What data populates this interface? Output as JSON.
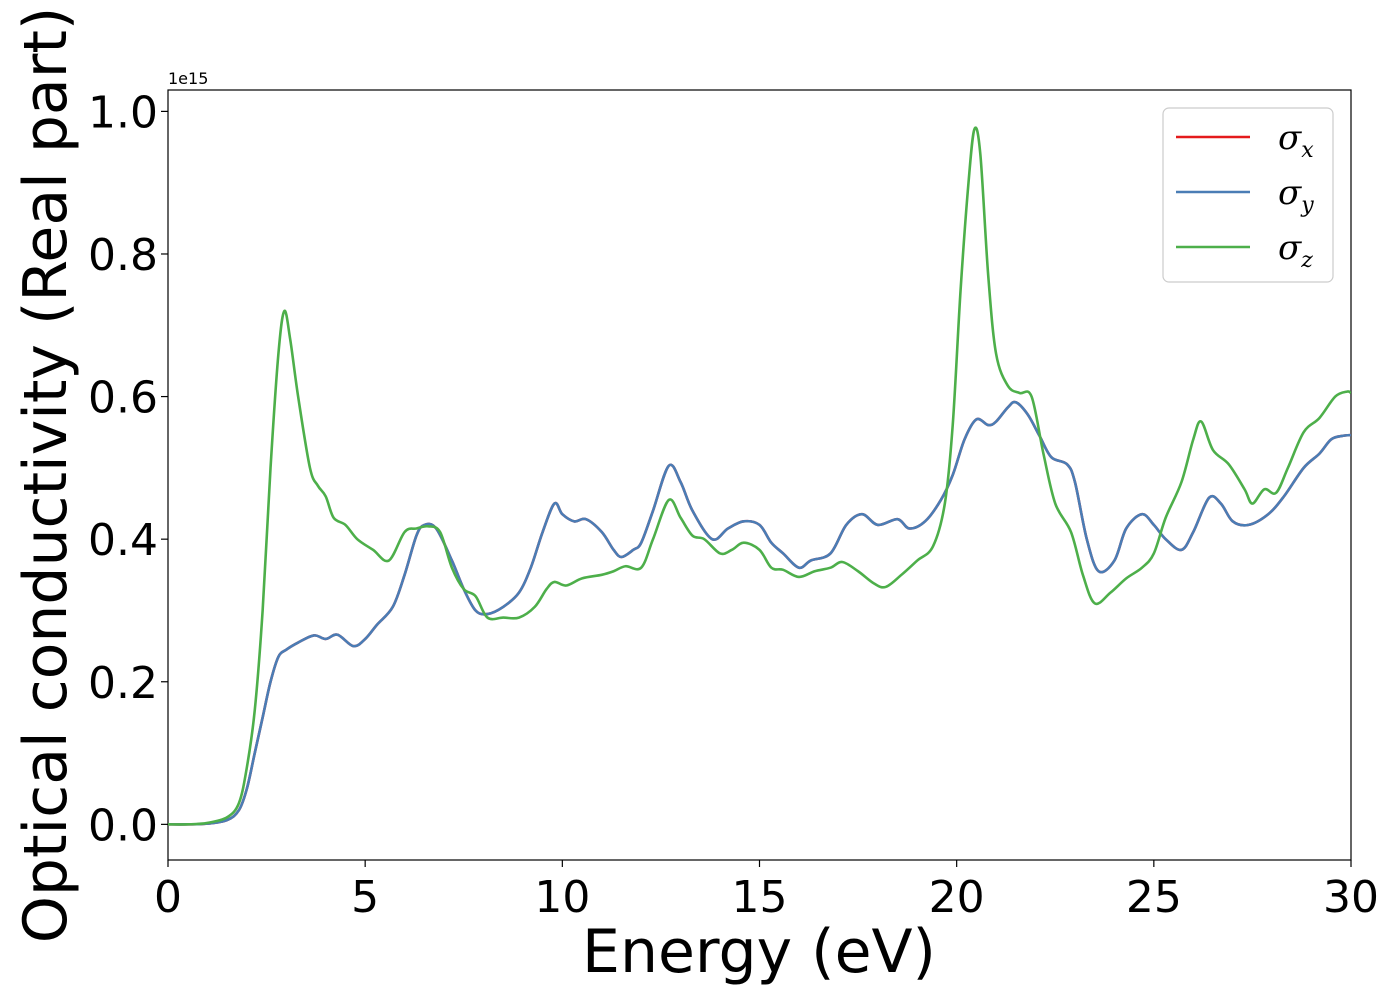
{
  "chart_data": {
    "type": "line",
    "xlabel": "Energy (eV)",
    "ylabel": "Optical conductivity (Real part)",
    "y_offset_label": "1e15",
    "xlim": [
      0,
      30
    ],
    "ylim": [
      -0.05,
      1.03
    ],
    "xticks": [
      0,
      5,
      10,
      15,
      20,
      25,
      30
    ],
    "xtick_labels": [
      "0",
      "5",
      "10",
      "15",
      "20",
      "25",
      "30"
    ],
    "yticks": [
      0.0,
      0.2,
      0.4,
      0.6,
      0.8,
      1.0
    ],
    "ytick_labels": [
      "0.0",
      "0.2",
      "0.4",
      "0.6",
      "0.8",
      "1.0"
    ],
    "grid": false,
    "legend_position": "top-right",
    "series": [
      {
        "name": "σ_x",
        "legend_base": "σ",
        "legend_sub": "x",
        "color": "#e41a1c",
        "points": [
          [
            0,
            0
          ],
          [
            0.5,
            0
          ],
          [
            1,
            0.001
          ],
          [
            1.5,
            0.006
          ],
          [
            1.8,
            0.02
          ],
          [
            2.0,
            0.05
          ],
          [
            2.2,
            0.1
          ],
          [
            2.4,
            0.15
          ],
          [
            2.6,
            0.2
          ],
          [
            2.8,
            0.235
          ],
          [
            3.0,
            0.245
          ],
          [
            3.3,
            0.255
          ],
          [
            3.7,
            0.265
          ],
          [
            4.0,
            0.26
          ],
          [
            4.3,
            0.266
          ],
          [
            4.7,
            0.25
          ],
          [
            5.0,
            0.26
          ],
          [
            5.3,
            0.28
          ],
          [
            5.7,
            0.305
          ],
          [
            6.0,
            0.35
          ],
          [
            6.3,
            0.405
          ],
          [
            6.5,
            0.42
          ],
          [
            6.8,
            0.415
          ],
          [
            7.2,
            0.37
          ],
          [
            7.5,
            0.33
          ],
          [
            7.8,
            0.3
          ],
          [
            8.1,
            0.295
          ],
          [
            8.5,
            0.305
          ],
          [
            8.9,
            0.325
          ],
          [
            9.2,
            0.36
          ],
          [
            9.5,
            0.41
          ],
          [
            9.8,
            0.45
          ],
          [
            10.0,
            0.435
          ],
          [
            10.3,
            0.425
          ],
          [
            10.6,
            0.428
          ],
          [
            11.0,
            0.41
          ],
          [
            11.3,
            0.385
          ],
          [
            11.5,
            0.375
          ],
          [
            11.8,
            0.385
          ],
          [
            12.0,
            0.395
          ],
          [
            12.3,
            0.44
          ],
          [
            12.7,
            0.503
          ],
          [
            13.0,
            0.48
          ],
          [
            13.3,
            0.44
          ],
          [
            13.8,
            0.4
          ],
          [
            14.2,
            0.415
          ],
          [
            14.6,
            0.425
          ],
          [
            15.0,
            0.42
          ],
          [
            15.3,
            0.395
          ],
          [
            15.6,
            0.38
          ],
          [
            16.0,
            0.36
          ],
          [
            16.3,
            0.37
          ],
          [
            16.8,
            0.38
          ],
          [
            17.2,
            0.42
          ],
          [
            17.6,
            0.435
          ],
          [
            18.0,
            0.42
          ],
          [
            18.5,
            0.428
          ],
          [
            18.8,
            0.415
          ],
          [
            19.2,
            0.425
          ],
          [
            19.6,
            0.455
          ],
          [
            19.9,
            0.49
          ],
          [
            20.2,
            0.54
          ],
          [
            20.5,
            0.568
          ],
          [
            20.8,
            0.56
          ],
          [
            21.0,
            0.565
          ],
          [
            21.3,
            0.585
          ],
          [
            21.5,
            0.592
          ],
          [
            21.8,
            0.575
          ],
          [
            22.1,
            0.545
          ],
          [
            22.4,
            0.515
          ],
          [
            22.8,
            0.505
          ],
          [
            23.0,
            0.48
          ],
          [
            23.3,
            0.4
          ],
          [
            23.6,
            0.355
          ],
          [
            24.0,
            0.37
          ],
          [
            24.3,
            0.415
          ],
          [
            24.7,
            0.435
          ],
          [
            25.0,
            0.42
          ],
          [
            25.3,
            0.4
          ],
          [
            25.7,
            0.385
          ],
          [
            26.0,
            0.41
          ],
          [
            26.4,
            0.458
          ],
          [
            26.7,
            0.45
          ],
          [
            27.0,
            0.425
          ],
          [
            27.4,
            0.42
          ],
          [
            27.9,
            0.435
          ],
          [
            28.3,
            0.46
          ],
          [
            28.8,
            0.5
          ],
          [
            29.2,
            0.52
          ],
          [
            29.5,
            0.54
          ],
          [
            29.8,
            0.545
          ],
          [
            30,
            0.546
          ]
        ]
      },
      {
        "name": "σ_y",
        "legend_base": "σ",
        "legend_sub": "y",
        "color": "#4a7db5",
        "points": [
          [
            0,
            0
          ],
          [
            0.5,
            0
          ],
          [
            1,
            0.001
          ],
          [
            1.5,
            0.006
          ],
          [
            1.8,
            0.02
          ],
          [
            2.0,
            0.05
          ],
          [
            2.2,
            0.1
          ],
          [
            2.4,
            0.15
          ],
          [
            2.6,
            0.2
          ],
          [
            2.8,
            0.235
          ],
          [
            3.0,
            0.245
          ],
          [
            3.3,
            0.255
          ],
          [
            3.7,
            0.265
          ],
          [
            4.0,
            0.26
          ],
          [
            4.3,
            0.266
          ],
          [
            4.7,
            0.25
          ],
          [
            5.0,
            0.26
          ],
          [
            5.3,
            0.28
          ],
          [
            5.7,
            0.305
          ],
          [
            6.0,
            0.35
          ],
          [
            6.3,
            0.405
          ],
          [
            6.5,
            0.42
          ],
          [
            6.8,
            0.415
          ],
          [
            7.2,
            0.37
          ],
          [
            7.5,
            0.33
          ],
          [
            7.8,
            0.3
          ],
          [
            8.1,
            0.295
          ],
          [
            8.5,
            0.305
          ],
          [
            8.9,
            0.325
          ],
          [
            9.2,
            0.36
          ],
          [
            9.5,
            0.41
          ],
          [
            9.8,
            0.45
          ],
          [
            10.0,
            0.435
          ],
          [
            10.3,
            0.425
          ],
          [
            10.6,
            0.428
          ],
          [
            11.0,
            0.41
          ],
          [
            11.3,
            0.385
          ],
          [
            11.5,
            0.375
          ],
          [
            11.8,
            0.385
          ],
          [
            12.0,
            0.395
          ],
          [
            12.3,
            0.44
          ],
          [
            12.7,
            0.503
          ],
          [
            13.0,
            0.48
          ],
          [
            13.3,
            0.44
          ],
          [
            13.8,
            0.4
          ],
          [
            14.2,
            0.415
          ],
          [
            14.6,
            0.425
          ],
          [
            15.0,
            0.42
          ],
          [
            15.3,
            0.395
          ],
          [
            15.6,
            0.38
          ],
          [
            16.0,
            0.36
          ],
          [
            16.3,
            0.37
          ],
          [
            16.8,
            0.38
          ],
          [
            17.2,
            0.42
          ],
          [
            17.6,
            0.435
          ],
          [
            18.0,
            0.42
          ],
          [
            18.5,
            0.428
          ],
          [
            18.8,
            0.415
          ],
          [
            19.2,
            0.425
          ],
          [
            19.6,
            0.455
          ],
          [
            19.9,
            0.49
          ],
          [
            20.2,
            0.54
          ],
          [
            20.5,
            0.568
          ],
          [
            20.8,
            0.56
          ],
          [
            21.0,
            0.565
          ],
          [
            21.3,
            0.585
          ],
          [
            21.5,
            0.592
          ],
          [
            21.8,
            0.575
          ],
          [
            22.1,
            0.545
          ],
          [
            22.4,
            0.515
          ],
          [
            22.8,
            0.505
          ],
          [
            23.0,
            0.48
          ],
          [
            23.3,
            0.4
          ],
          [
            23.6,
            0.355
          ],
          [
            24.0,
            0.37
          ],
          [
            24.3,
            0.415
          ],
          [
            24.7,
            0.435
          ],
          [
            25.0,
            0.42
          ],
          [
            25.3,
            0.4
          ],
          [
            25.7,
            0.385
          ],
          [
            26.0,
            0.41
          ],
          [
            26.4,
            0.458
          ],
          [
            26.7,
            0.45
          ],
          [
            27.0,
            0.425
          ],
          [
            27.4,
            0.42
          ],
          [
            27.9,
            0.435
          ],
          [
            28.3,
            0.46
          ],
          [
            28.8,
            0.5
          ],
          [
            29.2,
            0.52
          ],
          [
            29.5,
            0.54
          ],
          [
            29.8,
            0.545
          ],
          [
            30,
            0.546
          ]
        ]
      },
      {
        "name": "σ_z",
        "legend_base": "σ",
        "legend_sub": "z",
        "color": "#4daf4a",
        "points": [
          [
            0,
            0
          ],
          [
            0.5,
            0
          ],
          [
            1,
            0.002
          ],
          [
            1.5,
            0.01
          ],
          [
            1.8,
            0.03
          ],
          [
            2.0,
            0.08
          ],
          [
            2.2,
            0.16
          ],
          [
            2.4,
            0.3
          ],
          [
            2.6,
            0.5
          ],
          [
            2.8,
            0.66
          ],
          [
            2.95,
            0.72
          ],
          [
            3.1,
            0.68
          ],
          [
            3.3,
            0.6
          ],
          [
            3.6,
            0.5
          ],
          [
            3.8,
            0.475
          ],
          [
            4.0,
            0.46
          ],
          [
            4.2,
            0.43
          ],
          [
            4.5,
            0.42
          ],
          [
            4.8,
            0.4
          ],
          [
            5.2,
            0.385
          ],
          [
            5.6,
            0.37
          ],
          [
            6.0,
            0.41
          ],
          [
            6.3,
            0.415
          ],
          [
            6.6,
            0.418
          ],
          [
            6.9,
            0.41
          ],
          [
            7.2,
            0.36
          ],
          [
            7.5,
            0.33
          ],
          [
            7.8,
            0.32
          ],
          [
            8.1,
            0.29
          ],
          [
            8.5,
            0.29
          ],
          [
            8.9,
            0.29
          ],
          [
            9.3,
            0.305
          ],
          [
            9.6,
            0.33
          ],
          [
            9.8,
            0.34
          ],
          [
            10.1,
            0.335
          ],
          [
            10.5,
            0.345
          ],
          [
            11.0,
            0.35
          ],
          [
            11.3,
            0.355
          ],
          [
            11.6,
            0.362
          ],
          [
            12.0,
            0.36
          ],
          [
            12.3,
            0.4
          ],
          [
            12.7,
            0.455
          ],
          [
            13.0,
            0.43
          ],
          [
            13.3,
            0.405
          ],
          [
            13.6,
            0.4
          ],
          [
            14.0,
            0.38
          ],
          [
            14.3,
            0.385
          ],
          [
            14.6,
            0.395
          ],
          [
            15.0,
            0.385
          ],
          [
            15.3,
            0.36
          ],
          [
            15.6,
            0.357
          ],
          [
            16.0,
            0.347
          ],
          [
            16.4,
            0.355
          ],
          [
            16.8,
            0.36
          ],
          [
            17.1,
            0.368
          ],
          [
            17.5,
            0.355
          ],
          [
            17.9,
            0.338
          ],
          [
            18.2,
            0.333
          ],
          [
            18.6,
            0.35
          ],
          [
            19.0,
            0.37
          ],
          [
            19.4,
            0.39
          ],
          [
            19.7,
            0.45
          ],
          [
            19.9,
            0.56
          ],
          [
            20.1,
            0.75
          ],
          [
            20.3,
            0.9
          ],
          [
            20.45,
            0.975
          ],
          [
            20.6,
            0.94
          ],
          [
            20.8,
            0.77
          ],
          [
            21.0,
            0.66
          ],
          [
            21.3,
            0.615
          ],
          [
            21.6,
            0.605
          ],
          [
            21.9,
            0.6
          ],
          [
            22.2,
            0.52
          ],
          [
            22.5,
            0.45
          ],
          [
            22.9,
            0.41
          ],
          [
            23.2,
            0.35
          ],
          [
            23.5,
            0.31
          ],
          [
            23.9,
            0.325
          ],
          [
            24.3,
            0.345
          ],
          [
            24.7,
            0.36
          ],
          [
            25.0,
            0.38
          ],
          [
            25.3,
            0.43
          ],
          [
            25.7,
            0.48
          ],
          [
            26.0,
            0.54
          ],
          [
            26.2,
            0.565
          ],
          [
            26.5,
            0.525
          ],
          [
            26.9,
            0.505
          ],
          [
            27.3,
            0.47
          ],
          [
            27.5,
            0.45
          ],
          [
            27.8,
            0.47
          ],
          [
            28.1,
            0.465
          ],
          [
            28.4,
            0.5
          ],
          [
            28.8,
            0.55
          ],
          [
            29.2,
            0.57
          ],
          [
            29.6,
            0.6
          ],
          [
            29.9,
            0.607
          ],
          [
            30,
            0.605
          ]
        ]
      }
    ]
  }
}
